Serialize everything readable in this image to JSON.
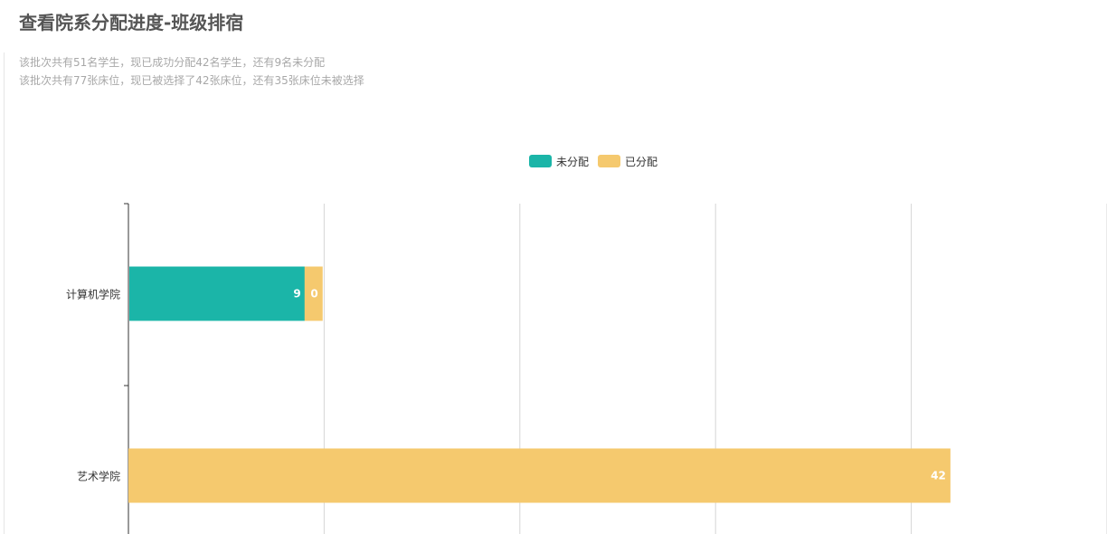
{
  "page": {
    "title": "查看院系分配进度-班级排宿",
    "summary_lines": [
      "该批次共有51名学生，现已成功分配42名学生，还有9名未分配",
      "该批次共有77张床位，现已被选择了42张床位，还有35张床位未被选择"
    ]
  },
  "colors": {
    "unassigned": "#1bb5a8",
    "assigned": "#f5c96e",
    "grid": "#d6d6d6",
    "axis": "#333333"
  },
  "chart_data": {
    "type": "bar",
    "orientation": "horizontal",
    "stacked": true,
    "categories": [
      "计算机学院",
      "艺术学院"
    ],
    "series": [
      {
        "name": "未分配",
        "values": [
          9,
          0
        ]
      },
      {
        "name": "已分配",
        "values": [
          0,
          42
        ]
      }
    ],
    "xlim": [
      0,
      50
    ],
    "grid": true,
    "legend_position": "top-center",
    "show_value_labels": true
  }
}
